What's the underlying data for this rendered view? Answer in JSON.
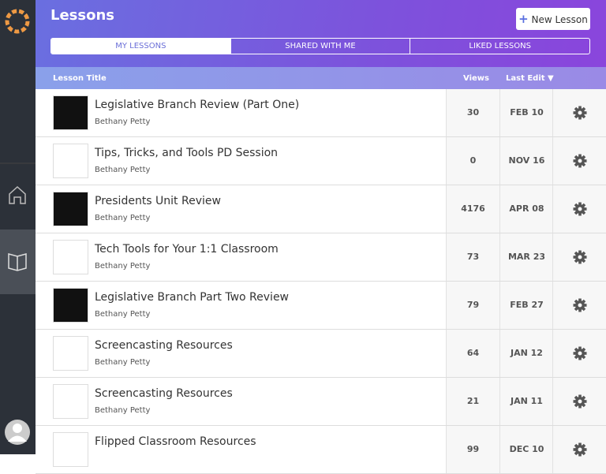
{
  "header": {
    "title": "Lessons",
    "new_button": "New Lesson"
  },
  "tabs": [
    "MY LESSONS",
    "SHARED WITH ME",
    "LIKED LESSONS"
  ],
  "table": {
    "columns": {
      "title": "Lesson Title",
      "views": "Views",
      "last_edit": "Last Edit"
    },
    "rows": [
      {
        "title": "Legislative Branch Review (Part One)",
        "author": "Bethany Petty",
        "views": 30,
        "date": "FEB 10"
      },
      {
        "title": "Tips, Tricks, and Tools PD Session",
        "author": "Bethany Petty",
        "views": 0,
        "date": "NOV 16"
      },
      {
        "title": "Presidents Unit Review",
        "author": "Bethany Petty",
        "views": 4176,
        "date": "APR 08"
      },
      {
        "title": "Tech Tools for Your 1:1 Classroom",
        "author": "Bethany Petty",
        "views": 73,
        "date": "MAR 23"
      },
      {
        "title": "Legislative Branch Part Two Review",
        "author": "Bethany Petty",
        "views": 79,
        "date": "FEB 27"
      },
      {
        "title": "Screencasting Resources",
        "author": "Bethany Petty",
        "views": 64,
        "date": "JAN 12"
      },
      {
        "title": "Screencasting Resources",
        "author": "Bethany Petty",
        "views": 21,
        "date": "JAN 11"
      },
      {
        "title": "Flipped Classroom Resources",
        "views": 99,
        "date": "DEC 10"
      }
    ]
  }
}
